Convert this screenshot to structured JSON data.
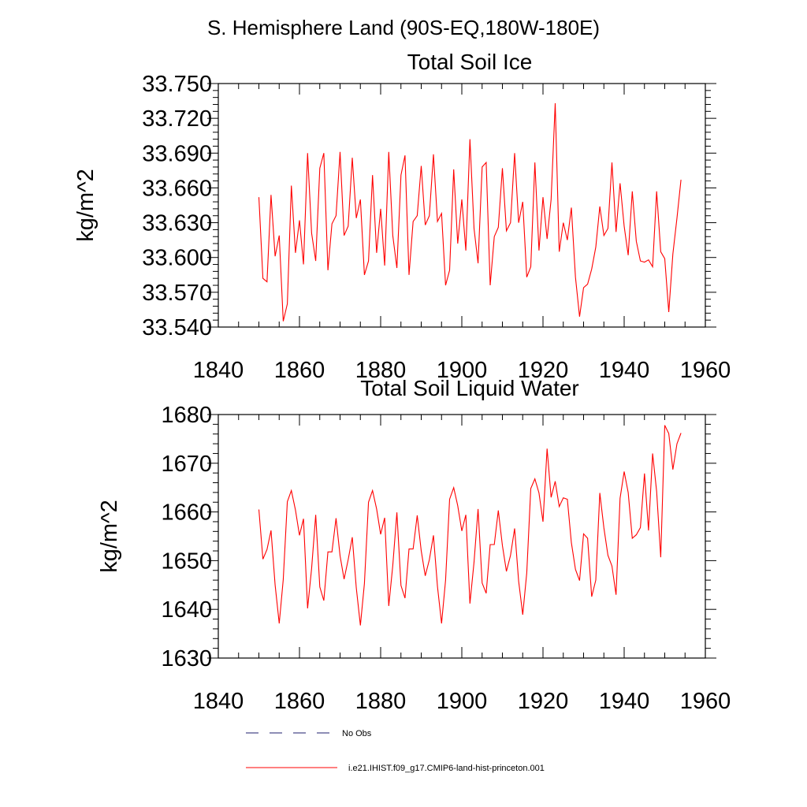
{
  "suptitle": "S. Hemisphere Land (90S-EQ,180W-180E)",
  "legend": [
    {
      "label": "No Obs",
      "color": "#1c1c6e",
      "dash": "dashed"
    },
    {
      "label": "i.e21.IHIST.f09_g17.CMIP6-land-hist-princeton.001",
      "color": "#ff0000",
      "dash": "solid"
    }
  ],
  "chart_data": [
    {
      "type": "line",
      "title": "Total Soil Ice",
      "ylabel": "kg/m^2",
      "xlabel": "",
      "xlim": [
        1840,
        1960
      ],
      "ylim": [
        33.54,
        33.75
      ],
      "xticks": [
        "1840",
        "1860",
        "1880",
        "1900",
        "1920",
        "1940",
        "1960"
      ],
      "yticks": [
        "33.540",
        "33.570",
        "33.600",
        "33.630",
        "33.660",
        "33.690",
        "33.720",
        "33.750"
      ],
      "series": [
        {
          "name": "i.e21.IHIST.f09_g17.CMIP6-land-hist-princeton.001",
          "color": "#ff0000",
          "x": [
            1850,
            1851,
            1852,
            1853,
            1854,
            1855,
            1856,
            1857,
            1858,
            1859,
            1860,
            1861,
            1862,
            1863,
            1864,
            1865,
            1866,
            1867,
            1868,
            1869,
            1870,
            1871,
            1872,
            1873,
            1874,
            1875,
            1876,
            1877,
            1878,
            1879,
            1880,
            1881,
            1882,
            1883,
            1884,
            1885,
            1886,
            1887,
            1888,
            1889,
            1890,
            1891,
            1892,
            1893,
            1894,
            1895,
            1896,
            1897,
            1898,
            1899,
            1900,
            1901,
            1902,
            1903,
            1904,
            1905,
            1906,
            1907,
            1908,
            1909,
            1910,
            1911,
            1912,
            1913,
            1914,
            1915,
            1916,
            1917,
            1918,
            1919,
            1920,
            1921,
            1922,
            1923,
            1924,
            1925,
            1926,
            1927,
            1928,
            1929,
            1930,
            1931,
            1932,
            1933,
            1934,
            1935,
            1936,
            1937,
            1938,
            1939,
            1940,
            1941,
            1942,
            1943,
            1944,
            1945,
            1946,
            1947,
            1948,
            1949,
            1950,
            1951,
            1952,
            1953,
            1954
          ],
          "y": [
            33.652,
            33.582,
            33.579,
            33.654,
            33.601,
            33.619,
            33.545,
            33.56,
            33.662,
            33.604,
            33.632,
            33.594,
            33.69,
            33.621,
            33.597,
            33.677,
            33.69,
            33.589,
            33.629,
            33.636,
            33.691,
            33.619,
            33.627,
            33.686,
            33.634,
            33.65,
            33.585,
            33.597,
            33.671,
            33.604,
            33.642,
            33.593,
            33.691,
            33.619,
            33.591,
            33.671,
            33.688,
            33.585,
            33.631,
            33.636,
            33.679,
            33.628,
            33.636,
            33.689,
            33.631,
            33.638,
            33.576,
            33.589,
            33.676,
            33.612,
            33.65,
            33.606,
            33.702,
            33.625,
            33.595,
            33.678,
            33.682,
            33.576,
            33.618,
            33.626,
            33.677,
            33.623,
            33.63,
            33.69,
            33.63,
            33.648,
            33.583,
            33.592,
            33.682,
            33.606,
            33.652,
            33.616,
            33.65,
            33.733,
            33.605,
            33.63,
            33.615,
            33.643,
            33.583,
            33.549,
            33.574,
            33.577,
            33.59,
            33.609,
            33.644,
            33.619,
            33.625,
            33.682,
            33.622,
            33.664,
            33.627,
            33.602,
            33.657,
            33.614,
            33.597,
            33.596,
            33.598,
            33.592,
            33.657,
            33.605,
            33.599,
            33.553,
            33.603,
            33.634,
            33.667
          ]
        }
      ]
    },
    {
      "type": "line",
      "title": "Total Soil Liquid Water",
      "ylabel": "kg/m^2",
      "xlabel": "",
      "xlim": [
        1840,
        1960
      ],
      "ylim": [
        1630,
        1680
      ],
      "xticks": [
        "1840",
        "1860",
        "1880",
        "1900",
        "1920",
        "1940",
        "1960"
      ],
      "yticks": [
        "1630",
        "1640",
        "1650",
        "1660",
        "1670",
        "1680"
      ],
      "series": [
        {
          "name": "i.e21.IHIST.f09_g17.CMIP6-land-hist-princeton.001",
          "color": "#ff0000",
          "x": [
            1850,
            1851,
            1852,
            1853,
            1854,
            1855,
            1856,
            1857,
            1858,
            1859,
            1860,
            1861,
            1862,
            1863,
            1864,
            1865,
            1866,
            1867,
            1868,
            1869,
            1870,
            1871,
            1872,
            1873,
            1874,
            1875,
            1876,
            1877,
            1878,
            1879,
            1880,
            1881,
            1882,
            1883,
            1884,
            1885,
            1886,
            1887,
            1888,
            1889,
            1890,
            1891,
            1892,
            1893,
            1894,
            1895,
            1896,
            1897,
            1898,
            1899,
            1900,
            1901,
            1902,
            1903,
            1904,
            1905,
            1906,
            1907,
            1908,
            1909,
            1910,
            1911,
            1912,
            1913,
            1914,
            1915,
            1916,
            1917,
            1918,
            1919,
            1920,
            1921,
            1922,
            1923,
            1924,
            1925,
            1926,
            1927,
            1928,
            1929,
            1930,
            1931,
            1932,
            1933,
            1934,
            1935,
            1936,
            1937,
            1938,
            1939,
            1940,
            1941,
            1942,
            1943,
            1944,
            1945,
            1946,
            1947,
            1948,
            1949,
            1950,
            1951,
            1952,
            1953,
            1954
          ],
          "y": [
            1660.5,
            1650.3,
            1652.3,
            1656.2,
            1645.0,
            1637.1,
            1646.1,
            1662.1,
            1664.4,
            1660.4,
            1655.2,
            1658.6,
            1640.2,
            1648.4,
            1659.4,
            1644.6,
            1641.8,
            1651.8,
            1651.8,
            1658.7,
            1651.0,
            1646.2,
            1650.2,
            1654.8,
            1644.4,
            1636.7,
            1645.3,
            1662.0,
            1664.4,
            1660.6,
            1655.4,
            1658.8,
            1640.7,
            1649.0,
            1659.9,
            1644.9,
            1642.3,
            1652.4,
            1652.4,
            1659.3,
            1652.0,
            1646.9,
            1650.2,
            1655.2,
            1644.7,
            1637.1,
            1646.0,
            1662.6,
            1665.0,
            1661.3,
            1656.1,
            1659.4,
            1641.2,
            1649.7,
            1660.6,
            1645.4,
            1643.3,
            1653.3,
            1653.3,
            1660.3,
            1653.1,
            1647.8,
            1651.1,
            1656.6,
            1645.8,
            1638.9,
            1647.5,
            1664.8,
            1666.8,
            1663.9,
            1658.0,
            1673.0,
            1663.0,
            1666.3,
            1661.1,
            1662.9,
            1662.6,
            1653.7,
            1648.2,
            1645.9,
            1655.5,
            1654.6,
            1642.6,
            1646.0,
            1663.9,
            1656.7,
            1651.1,
            1648.9,
            1643.0,
            1662.8,
            1668.3,
            1664.0,
            1654.6,
            1655.3,
            1656.8,
            1667.9,
            1656.2,
            1672.0,
            1664.2,
            1650.7,
            1677.8,
            1676.1,
            1668.7,
            1674.0,
            1676.2
          ]
        }
      ]
    }
  ]
}
